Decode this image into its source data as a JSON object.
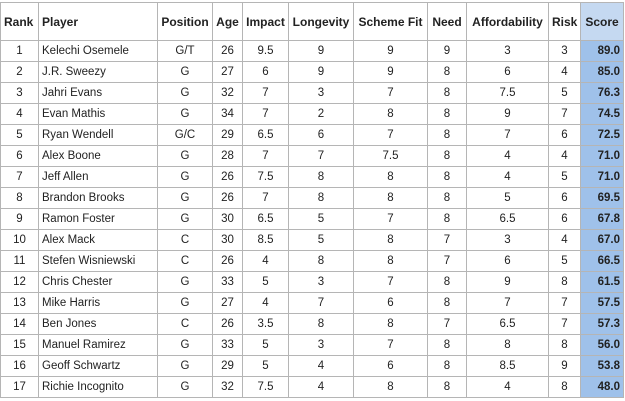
{
  "table": {
    "header": [
      "Rank",
      "Player",
      "Position",
      "Age",
      "Impact",
      "Longevity",
      "Scheme Fit",
      "Need",
      "Affordability",
      "Risk",
      "Score"
    ],
    "rows": [
      [
        "1",
        "Kelechi Osemele",
        "G/T",
        "26",
        "9.5",
        "9",
        "9",
        "9",
        "3",
        "3",
        "89.0"
      ],
      [
        "2",
        "J.R. Sweezy",
        "G",
        "27",
        "6",
        "9",
        "9",
        "8",
        "6",
        "4",
        "85.0"
      ],
      [
        "3",
        "Jahri Evans",
        "G",
        "32",
        "7",
        "3",
        "7",
        "8",
        "7.5",
        "5",
        "76.3"
      ],
      [
        "4",
        "Evan Mathis",
        "G",
        "34",
        "7",
        "2",
        "8",
        "8",
        "9",
        "7",
        "74.5"
      ],
      [
        "5",
        "Ryan Wendell",
        "G/C",
        "29",
        "6.5",
        "6",
        "7",
        "8",
        "7",
        "6",
        "72.5"
      ],
      [
        "6",
        "Alex Boone",
        "G",
        "28",
        "7",
        "7",
        "7.5",
        "8",
        "4",
        "4",
        "71.0"
      ],
      [
        "7",
        "Jeff Allen",
        "G",
        "26",
        "7.5",
        "8",
        "8",
        "8",
        "4",
        "5",
        "71.0"
      ],
      [
        "8",
        "Brandon Brooks",
        "G",
        "26",
        "7",
        "8",
        "8",
        "8",
        "5",
        "6",
        "69.5"
      ],
      [
        "9",
        "Ramon Foster",
        "G",
        "30",
        "6.5",
        "5",
        "7",
        "8",
        "6.5",
        "6",
        "67.8"
      ],
      [
        "10",
        "Alex Mack",
        "C",
        "30",
        "8.5",
        "5",
        "8",
        "7",
        "3",
        "4",
        "67.0"
      ],
      [
        "11",
        "Stefen Wisniewski",
        "C",
        "26",
        "4",
        "8",
        "8",
        "7",
        "6",
        "5",
        "66.5"
      ],
      [
        "12",
        "Chris Chester",
        "G",
        "33",
        "5",
        "3",
        "7",
        "8",
        "9",
        "8",
        "61.5"
      ],
      [
        "13",
        "Mike Harris",
        "G",
        "27",
        "4",
        "7",
        "6",
        "8",
        "7",
        "7",
        "57.5"
      ],
      [
        "14",
        "Ben Jones",
        "C",
        "26",
        "3.5",
        "8",
        "8",
        "7",
        "6.5",
        "7",
        "57.3"
      ],
      [
        "15",
        "Manuel Ramirez",
        "G",
        "33",
        "5",
        "3",
        "7",
        "8",
        "8",
        "8",
        "56.0"
      ],
      [
        "16",
        "Geoff Schwartz",
        "G",
        "29",
        "5",
        "4",
        "6",
        "8",
        "8.5",
        "9",
        "53.8"
      ],
      [
        "17",
        "Richie Incognito",
        "G",
        "32",
        "7.5",
        "4",
        "8",
        "8",
        "4",
        "8",
        "48.0"
      ]
    ]
  }
}
